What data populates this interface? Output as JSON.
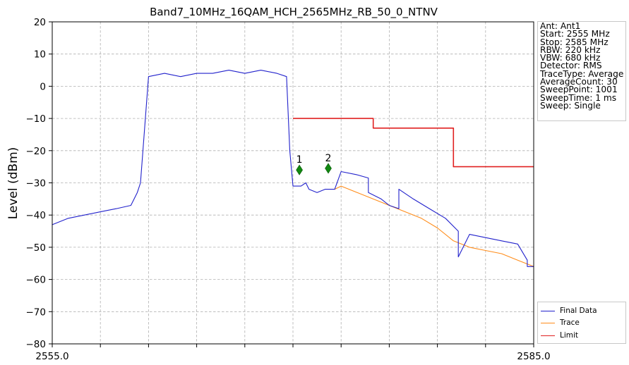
{
  "chart_data": {
    "type": "line",
    "title": "Band7_10MHz_16QAM_HCH_2565MHz_RB_50_0_NTNV",
    "xlabel": "",
    "ylabel": "Level (dBm)",
    "xlim": [
      2555.0,
      2585.0
    ],
    "ylim": [
      -80,
      20
    ],
    "x_tick_labels": [
      "2555.0",
      "2585.0"
    ],
    "y_ticks": [
      20,
      10,
      0,
      -10,
      -20,
      -30,
      -40,
      -50,
      -60,
      -70,
      -80
    ],
    "grid": true,
    "series": [
      {
        "name": "Final Data",
        "color": "#2222cc",
        "x": [
          2555.0,
          2556.0,
          2557.0,
          2558.0,
          2559.0,
          2559.9,
          2560.3,
          2560.5,
          2561.0,
          2562.0,
          2563.0,
          2564.0,
          2565.0,
          2566.0,
          2567.0,
          2568.0,
          2569.0,
          2569.6,
          2569.8,
          2570.0,
          2570.5,
          2570.8,
          2571.0,
          2571.5,
          2572.0,
          2572.6,
          2573.0,
          2574.0,
          2574.7,
          2574.7,
          2575.5,
          2576.0,
          2576.6,
          2576.6,
          2577.5,
          2578.5,
          2579.5,
          2580.3,
          2580.3,
          2581.0,
          2582.0,
          2583.0,
          2584.0,
          2584.6,
          2584.6,
          2585.0
        ],
        "values": [
          -43,
          -41,
          -40,
          -39,
          -38,
          -37,
          -33,
          -30,
          3,
          4,
          3,
          4,
          4,
          5,
          4,
          5,
          4,
          3,
          -20,
          -31,
          -31,
          -30,
          -32,
          -33,
          -32,
          -32,
          -26.5,
          -27.5,
          -28.5,
          -33,
          -35,
          -37,
          -38,
          -32,
          -35,
          -38,
          -41,
          -45,
          -53,
          -46,
          -47,
          -48,
          -49,
          -54,
          -56,
          -56
        ]
      },
      {
        "name": "Trace",
        "color": "#ff8c1a",
        "x": [
          2572.6,
          2573.0,
          2574.0,
          2575.0,
          2576.0,
          2577.0,
          2578.0,
          2579.0,
          2580.0,
          2581.0,
          2582.0,
          2583.0,
          2584.0,
          2585.0
        ],
        "values": [
          -32,
          -31,
          -33,
          -35,
          -37,
          -39,
          -41,
          -44,
          -48,
          -50,
          -51,
          -52,
          -54,
          -56
        ]
      },
      {
        "name": "Limit",
        "color": "#e02020",
        "x": [
          2570.0,
          2575.0,
          2575.0,
          2580.0,
          2580.0,
          2585.0
        ],
        "values": [
          -10,
          -10,
          -13,
          -13,
          -25,
          -25
        ]
      }
    ],
    "markers": [
      {
        "label": "1",
        "x": 2570.4,
        "y": -26
      },
      {
        "label": "2",
        "x": 2572.2,
        "y": -25.5
      }
    ],
    "legend_position": "bottom-right, outside plot"
  },
  "info": {
    "lines": [
      "Ant: Ant1",
      "Start: 2555 MHz",
      "Stop: 2585 MHz",
      "RBW: 220 kHz",
      "VBW: 680 kHz",
      "Detector: RMS",
      "TraceType: Average",
      "AverageCount: 30",
      "SweepPoint: 1001",
      "SweepTime: 1 ms",
      "Sweep: Single"
    ]
  }
}
